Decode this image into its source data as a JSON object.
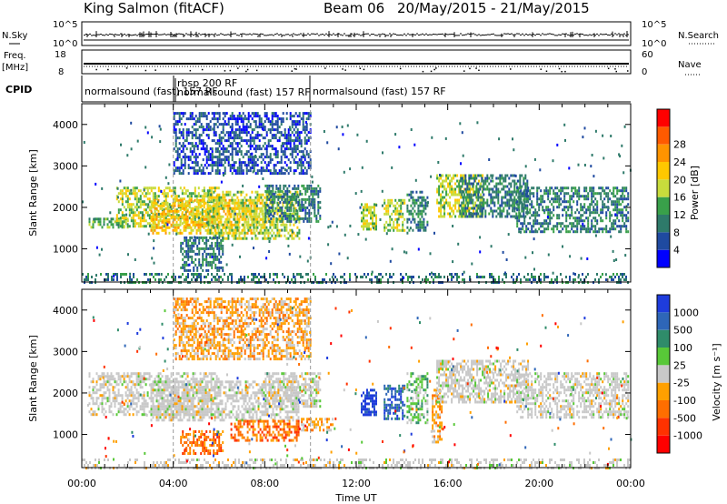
{
  "header": {
    "station": "King Salmon (fitACF)",
    "beam": "Beam 06",
    "dates": "20/May/2015 - 21/May/2015"
  },
  "strip_panels": {
    "nsky": {
      "label": "N.Sky",
      "ticks": [
        "10^5",
        "10^0"
      ]
    },
    "nsearch": {
      "label": "N.Search",
      "ticks": [
        "10^5",
        "10^0"
      ]
    },
    "freq": {
      "label_top": "Freq.",
      "label_unit": "[MHz]",
      "ticks": [
        "18",
        "8"
      ]
    },
    "nave": {
      "label": "Nave",
      "ticks": [
        "60",
        "0"
      ]
    },
    "cpid": {
      "label": "CPID",
      "segments": [
        {
          "name": "normalsound (fast) 157 RF",
          "start": 0,
          "end": 4
        },
        {
          "name": "rbsp 200 RF",
          "start": 4,
          "end": 4.1
        },
        {
          "name": "normalsound (fast) 157 RF",
          "start": 4.1,
          "end": 10
        },
        {
          "name": "normalsound (fast) 157 RF",
          "start": 10,
          "end": 24
        }
      ]
    }
  },
  "chart_data": [
    {
      "type": "heatmap",
      "title": "",
      "xlabel": "Time UT",
      "ylabel": "Slant Range [km]",
      "xlim": [
        0,
        24
      ],
      "ylim": [
        200,
        4500
      ],
      "x_ticks": [
        "00:00",
        "04:00",
        "08:00",
        "12:00",
        "16:00",
        "20:00",
        "00:00"
      ],
      "y_ticks": [
        1000,
        2000,
        3000,
        4000
      ],
      "colorbar": {
        "label": "Power [dB]",
        "ticks": [
          4,
          8,
          12,
          16,
          20,
          24,
          28
        ],
        "colors": [
          "#0000ff",
          "#1f4aa0",
          "#2e7a6a",
          "#39a04a",
          "#c8dc3c",
          "#ffc800",
          "#ff9400",
          "#ff5a00",
          "#ff0000"
        ]
      },
      "echo_regions": [
        {
          "t0": 0.3,
          "t1": 2.0,
          "r0": 1500,
          "r1": 1750,
          "level": 3
        },
        {
          "t0": 1.5,
          "t1": 6.0,
          "r0": 1550,
          "r1": 2500,
          "level": 4
        },
        {
          "t0": 3.0,
          "t1": 8.0,
          "r0": 1350,
          "r1": 2200,
          "level": 5
        },
        {
          "t0": 5.5,
          "t1": 9.5,
          "r0": 1250,
          "r1": 2400,
          "level": 4
        },
        {
          "t0": 8.0,
          "t1": 10.4,
          "r0": 1650,
          "r1": 2550,
          "level": 2
        },
        {
          "t0": 4.3,
          "t1": 6.2,
          "r0": 500,
          "r1": 1300,
          "level": 2
        },
        {
          "t0": 4.0,
          "t1": 10.0,
          "r0": 2800,
          "r1": 4300,
          "level": 1
        },
        {
          "t0": 12.2,
          "t1": 12.9,
          "r0": 1450,
          "r1": 2100,
          "level": 4
        },
        {
          "t0": 13.2,
          "t1": 14.1,
          "r0": 1450,
          "r1": 2200,
          "level": 4
        },
        {
          "t0": 14.2,
          "t1": 15.1,
          "r0": 1350,
          "r1": 2400,
          "level": 2
        },
        {
          "t0": 15.5,
          "t1": 17.5,
          "r0": 1800,
          "r1": 2800,
          "level": 4
        },
        {
          "t0": 16.5,
          "t1": 19.5,
          "r0": 1800,
          "r1": 2800,
          "level": 2
        },
        {
          "t0": 19.0,
          "t1": 23.9,
          "r0": 1400,
          "r1": 2500,
          "level": 2
        },
        {
          "t0": 0.0,
          "t1": 24.0,
          "r0": 220,
          "r1": 420,
          "level": 2
        }
      ]
    },
    {
      "type": "heatmap",
      "title": "",
      "xlabel": "Time UT",
      "ylabel": "Slant Range [km]",
      "xlim": [
        0,
        24
      ],
      "ylim": [
        200,
        4500
      ],
      "x_ticks": [
        "00:00",
        "04:00",
        "08:00",
        "12:00",
        "16:00",
        "20:00",
        "00:00"
      ],
      "y_ticks": [
        1000,
        2000,
        3000,
        4000
      ],
      "colorbar": {
        "label": "Velocity [m s⁻¹]",
        "ticks": [
          "1000",
          "500",
          "100",
          "25",
          "-25",
          "-100",
          "-500",
          "-1000"
        ],
        "colors": [
          "#1e3cdc",
          "#2e66b8",
          "#2f8c6a",
          "#58c838",
          "#c8c8c8",
          "#ffa000",
          "#ff6e00",
          "#ff3200",
          "#ff0000"
        ]
      },
      "echo_regions": [
        {
          "t0": 0.3,
          "t1": 6.0,
          "r0": 1500,
          "r1": 2500,
          "level": 4
        },
        {
          "t0": 3.0,
          "t1": 9.5,
          "r0": 1350,
          "r1": 2300,
          "level": 4
        },
        {
          "t0": 8.0,
          "t1": 10.4,
          "r0": 1650,
          "r1": 2500,
          "level": 4
        },
        {
          "t0": 4.3,
          "t1": 6.2,
          "r0": 550,
          "r1": 1100,
          "level": 6
        },
        {
          "t0": 6.5,
          "t1": 9.5,
          "r0": 850,
          "r1": 1350,
          "level": 6
        },
        {
          "t0": 9.5,
          "t1": 11.0,
          "r0": 1100,
          "r1": 1400,
          "level": 5
        },
        {
          "t0": 12.2,
          "t1": 12.9,
          "r0": 1450,
          "r1": 2100,
          "level": 0
        },
        {
          "t0": 13.2,
          "t1": 14.1,
          "r0": 1400,
          "r1": 2200,
          "level": 1
        },
        {
          "t0": 14.2,
          "t1": 15.1,
          "r0": 1300,
          "r1": 2500,
          "level": 3
        },
        {
          "t0": 15.3,
          "t1": 15.7,
          "r0": 800,
          "r1": 2100,
          "level": 5
        },
        {
          "t0": 15.5,
          "t1": 19.5,
          "r0": 1800,
          "r1": 2800,
          "level": 4
        },
        {
          "t0": 19.0,
          "t1": 23.9,
          "r0": 1400,
          "r1": 2500,
          "level": 4
        },
        {
          "t0": 4.0,
          "t1": 10.0,
          "r0": 2800,
          "r1": 4300,
          "level": 5
        },
        {
          "t0": 0.0,
          "t1": 24.0,
          "r0": 220,
          "r1": 420,
          "level": 4
        }
      ]
    }
  ]
}
